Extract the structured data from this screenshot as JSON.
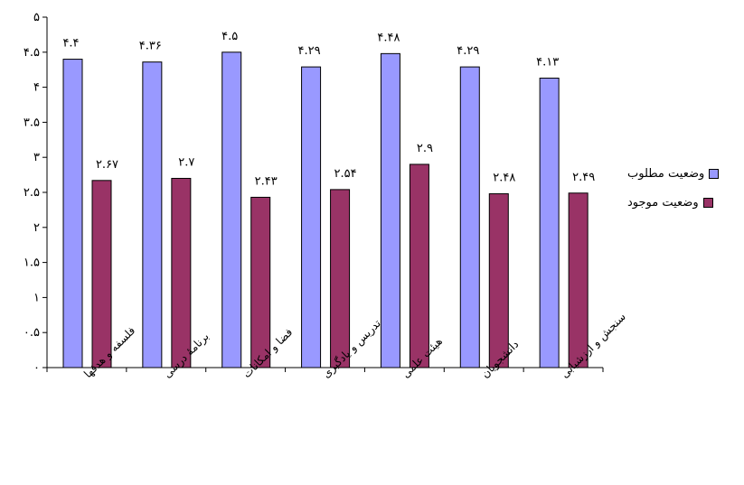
{
  "chart_data": {
    "type": "bar",
    "categories": [
      "فلسفه و هدفها",
      "برنامۀ درسی",
      "فضا و امکانات",
      "تدریس و یادگیری",
      "هیئت علمی",
      "دانشجویان",
      "سنجش و ارزشیابی"
    ],
    "series": [
      {
        "name": "وضعیت مطلوب",
        "values": [
          4.4,
          4.36,
          4.5,
          4.29,
          4.48,
          4.29,
          4.13
        ],
        "labels": [
          "۴.۴",
          "۴.۳۶",
          "۴.۵",
          "۴.۲۹",
          "۴.۴۸",
          "۴.۲۹",
          "۴.۱۳"
        ],
        "color": "#9999ff"
      },
      {
        "name": "وضعیت موجود",
        "values": [
          2.67,
          2.7,
          2.43,
          2.54,
          2.9,
          2.48,
          2.49
        ],
        "labels": [
          "۲.۶۷",
          "۲.۷",
          "۲.۴۳",
          "۲.۵۴",
          "۲.۹",
          "۲.۴۸",
          "۲.۴۹"
        ],
        "color": "#993366"
      }
    ],
    "ylim": [
      0,
      5
    ],
    "yticks": [
      0,
      0.5,
      1,
      1.5,
      2,
      2.5,
      3,
      3.5,
      4,
      4.5,
      5
    ],
    "ytick_labels": [
      "۰",
      "۰.۵",
      "۱",
      "۱.۵",
      "۲",
      "۲.۵",
      "۳",
      "۳.۵",
      "۴",
      "۴.۵",
      "۵"
    ],
    "grid": false,
    "legend_position": "right"
  }
}
